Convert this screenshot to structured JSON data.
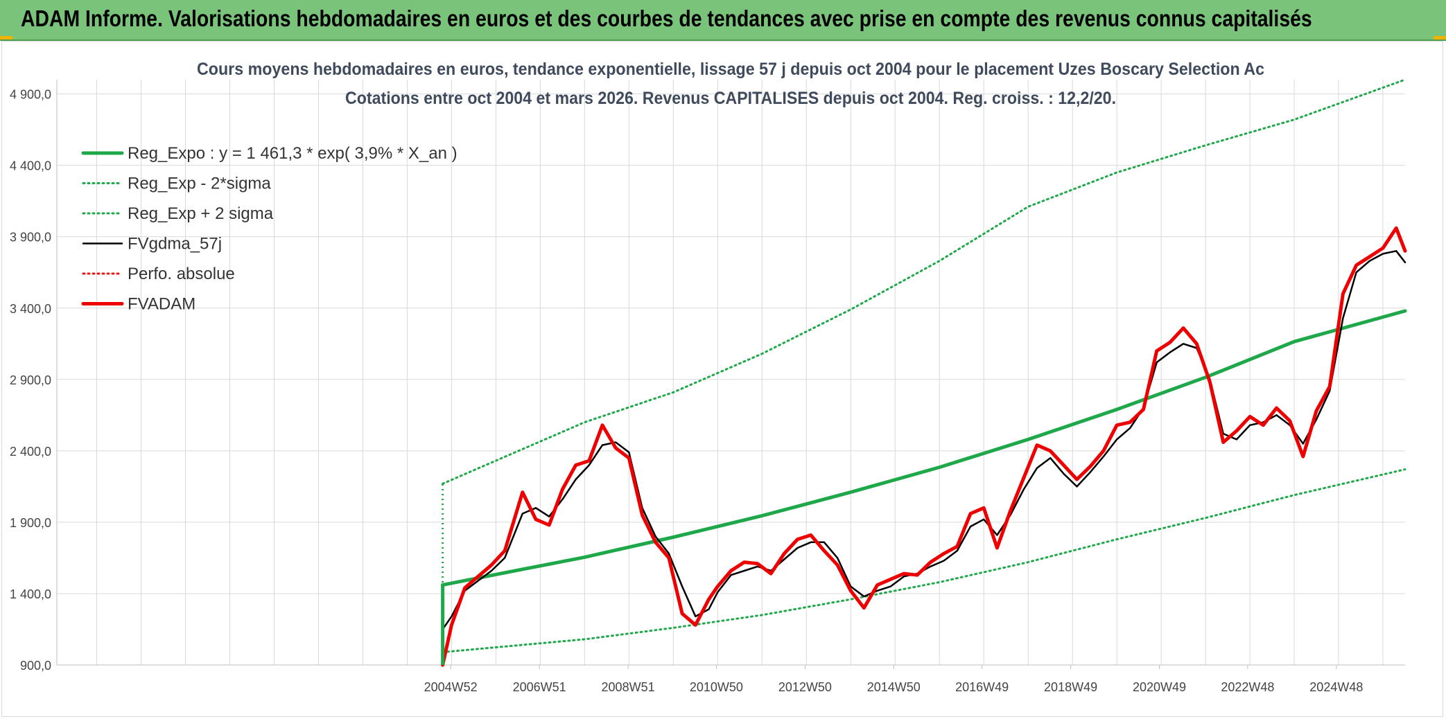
{
  "banner": {
    "title": "ADAM Informe. Valorisations hebdomadaires en euros et des courbes de tendances avec prise en compte des revenus connus capitalisés",
    "color": "#79c37a"
  },
  "chart_data": {
    "type": "line",
    "title": "Cours moyens hebdomadaires en euros, tendance exponentielle, lissage 57 j depuis oct 2004 pour le placement Uzes Boscary Selection Ac",
    "subtitle": "Cotations entre oct 2004 et mars 2026. Revenus CAPITALISES depuis oct 2004. Reg. croiss. : 12,2/20.",
    "xlabel": "",
    "ylabel": "",
    "ylim": [
      900,
      5000
    ],
    "xlim": [
      1996.1,
      2026.5
    ],
    "grid": true,
    "legend_position": "top-left",
    "y_ticks": [
      "900,0",
      "1 400,0",
      "1 900,0",
      "2 400,0",
      "2 900,0",
      "3 400,0",
      "3 900,0",
      "4 400,0",
      "4 900,0"
    ],
    "y_tick_values": [
      900,
      1400,
      1900,
      2400,
      2900,
      3400,
      3900,
      4400,
      4900
    ],
    "x_ticks": [
      "2004W52",
      "2006W51",
      "2008W51",
      "2010W50",
      "2012W50",
      "2014W50",
      "2016W49",
      "2018W49",
      "2020W49",
      "2022W48",
      "2024W48"
    ],
    "x_tick_values": [
      2004.98,
      2006.98,
      2008.98,
      2010.97,
      2012.97,
      2014.97,
      2016.96,
      2018.96,
      2020.96,
      2022.95,
      2024.95
    ],
    "legend": [
      {
        "label": "Reg_Expo : y = 1 461,3 * exp( 3,9% *  X_an )",
        "color": "#1ea84a",
        "style": "solid-thick"
      },
      {
        "label": "Reg_Exp - 2*sigma",
        "color": "#1ea84a",
        "style": "dotted"
      },
      {
        "label": "Reg_Exp + 2 sigma",
        "color": "#1ea84a",
        "style": "dotted"
      },
      {
        "label": "FVgdma_57j",
        "color": "#000000",
        "style": "solid"
      },
      {
        "label": "Perfo. absolue",
        "color": "#e31a1c",
        "style": "dotted"
      },
      {
        "label": "FVADAM",
        "color": "#ee0000",
        "style": "solid-thick"
      }
    ],
    "series": [
      {
        "name": "Reg_Expo : y = 1 461,3 * exp( 3,9% *  X_an )",
        "x": [
          2004.8,
          2008.0,
          2010.0,
          2012.0,
          2014.0,
          2016.0,
          2018.0,
          2020.0,
          2022.0,
          2024.0,
          2026.5
        ],
        "values": [
          1461,
          1655,
          1795,
          1945,
          2110,
          2285,
          2480,
          2690,
          2915,
          3165,
          3380
        ]
      },
      {
        "name": "Reg_Exp - 2*sigma",
        "x": [
          2004.8,
          2008.0,
          2010.0,
          2012.0,
          2014.0,
          2016.0,
          2018.0,
          2020.0,
          2022.0,
          2024.0,
          2026.5
        ],
        "values": [
          990,
          1080,
          1160,
          1250,
          1360,
          1480,
          1620,
          1780,
          1930,
          2090,
          2270
        ]
      },
      {
        "name": "Reg_Exp + 2 sigma",
        "x": [
          2004.8,
          2008.0,
          2010.0,
          2012.0,
          2014.0,
          2016.0,
          2018.0,
          2020.0,
          2022.0,
          2024.0,
          2026.5
        ],
        "values": [
          2170,
          2600,
          2810,
          3080,
          3390,
          3730,
          4110,
          4350,
          4540,
          4720,
          5000
        ]
      },
      {
        "name": "FVgdma_57j",
        "x": [
          2004.8,
          2005.0,
          2005.3,
          2005.6,
          2005.9,
          2006.2,
          2006.6,
          2006.9,
          2007.2,
          2007.5,
          2007.8,
          2008.1,
          2008.4,
          2008.7,
          2009.0,
          2009.3,
          2009.6,
          2009.9,
          2010.2,
          2010.5,
          2010.8,
          2011.0,
          2011.3,
          2011.6,
          2011.9,
          2012.2,
          2012.5,
          2012.8,
          2013.1,
          2013.4,
          2013.7,
          2014.0,
          2014.3,
          2014.6,
          2014.9,
          2015.2,
          2015.5,
          2015.8,
          2016.1,
          2016.4,
          2016.7,
          2017.0,
          2017.3,
          2017.6,
          2017.9,
          2018.2,
          2018.5,
          2018.8,
          2019.1,
          2019.4,
          2019.7,
          2020.0,
          2020.3,
          2020.6,
          2020.9,
          2021.2,
          2021.5,
          2021.8,
          2022.1,
          2022.4,
          2022.7,
          2023.0,
          2023.3,
          2023.6,
          2023.9,
          2024.2,
          2024.5,
          2024.8,
          2025.1,
          2025.4,
          2025.7,
          2026.0,
          2026.3,
          2026.5
        ],
        "values": [
          1150,
          1240,
          1420,
          1490,
          1560,
          1650,
          1960,
          2000,
          1940,
          2060,
          2200,
          2300,
          2440,
          2460,
          2390,
          2000,
          1800,
          1680,
          1450,
          1240,
          1290,
          1410,
          1530,
          1560,
          1590,
          1560,
          1640,
          1720,
          1760,
          1760,
          1650,
          1450,
          1380,
          1420,
          1450,
          1520,
          1540,
          1590,
          1630,
          1700,
          1870,
          1920,
          1810,
          1950,
          2130,
          2280,
          2350,
          2240,
          2150,
          2250,
          2360,
          2480,
          2560,
          2700,
          3020,
          3090,
          3150,
          3120,
          2900,
          2520,
          2480,
          2580,
          2600,
          2650,
          2580,
          2450,
          2620,
          2820,
          3330,
          3650,
          3730,
          3780,
          3800,
          3720
        ]
      },
      {
        "name": "FVADAM",
        "x": [
          2004.8,
          2005.0,
          2005.3,
          2005.6,
          2005.9,
          2006.2,
          2006.6,
          2006.9,
          2007.2,
          2007.5,
          2007.8,
          2008.1,
          2008.4,
          2008.7,
          2009.0,
          2009.3,
          2009.6,
          2009.9,
          2010.2,
          2010.5,
          2010.8,
          2011.0,
          2011.3,
          2011.6,
          2011.9,
          2012.2,
          2012.5,
          2012.8,
          2013.1,
          2013.4,
          2013.7,
          2014.0,
          2014.3,
          2014.6,
          2014.9,
          2015.2,
          2015.5,
          2015.8,
          2016.1,
          2016.4,
          2016.7,
          2017.0,
          2017.3,
          2017.6,
          2017.9,
          2018.2,
          2018.5,
          2018.8,
          2019.1,
          2019.4,
          2019.7,
          2020.0,
          2020.3,
          2020.6,
          2020.9,
          2021.2,
          2021.5,
          2021.8,
          2022.1,
          2022.4,
          2022.7,
          2023.0,
          2023.3,
          2023.6,
          2023.9,
          2024.2,
          2024.5,
          2024.8,
          2025.1,
          2025.4,
          2025.7,
          2026.0,
          2026.3,
          2026.5
        ],
        "values": [
          900,
          1180,
          1440,
          1520,
          1600,
          1700,
          2110,
          1920,
          1880,
          2130,
          2300,
          2330,
          2580,
          2420,
          2350,
          1950,
          1760,
          1650,
          1260,
          1180,
          1360,
          1450,
          1560,
          1620,
          1610,
          1540,
          1680,
          1780,
          1810,
          1700,
          1600,
          1420,
          1300,
          1460,
          1500,
          1540,
          1530,
          1620,
          1680,
          1730,
          1960,
          2000,
          1720,
          1980,
          2210,
          2440,
          2400,
          2300,
          2200,
          2290,
          2400,
          2580,
          2600,
          2690,
          3100,
          3160,
          3260,
          3150,
          2880,
          2460,
          2540,
          2640,
          2580,
          2700,
          2610,
          2360,
          2680,
          2850,
          3500,
          3700,
          3760,
          3820,
          3960,
          3800
        ]
      }
    ]
  }
}
